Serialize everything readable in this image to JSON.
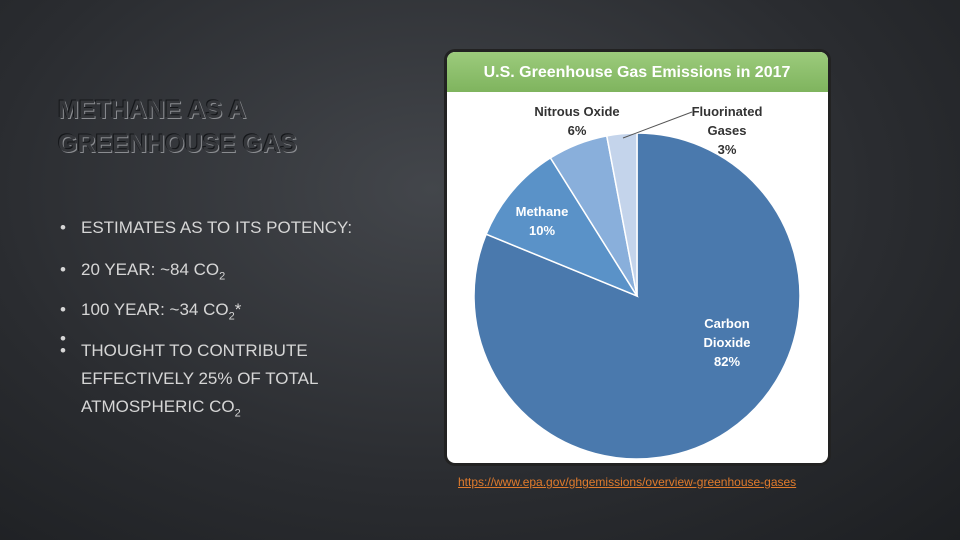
{
  "slide": {
    "title": "METHANE AS A GREENHOUSE GAS",
    "bullets": [
      {
        "text": "ESTIMATES AS TO ITS POTENCY:"
      },
      {
        "text": "20 YEAR: ~84 CO",
        "sub": "2"
      },
      {
        "text": "100 YEAR: ~34 CO",
        "sub": "2",
        "suffix": "*"
      },
      {
        "text": "THOUGHT TO CONTRIBUTE EFFECTIVELY 25% OF TOTAL ATMOSPHERIC CO",
        "sub": "2"
      }
    ],
    "link": "https://www.epa.gov/ghgemissions/overview-greenhouse-gases"
  },
  "chart_data": {
    "type": "pie",
    "title": "U.S. Greenhouse Gas Emissions in 2017",
    "categories": [
      "Carbon Dioxide",
      "Methane",
      "Nitrous Oxide",
      "Fluorinated Gases"
    ],
    "values": [
      82,
      10,
      6,
      3
    ],
    "value_labels": [
      "82%",
      "10%",
      "6%",
      "3%"
    ],
    "colors": [
      "#4a79ad",
      "#5a92c8",
      "#89afdb",
      "#c4d4eb"
    ]
  }
}
